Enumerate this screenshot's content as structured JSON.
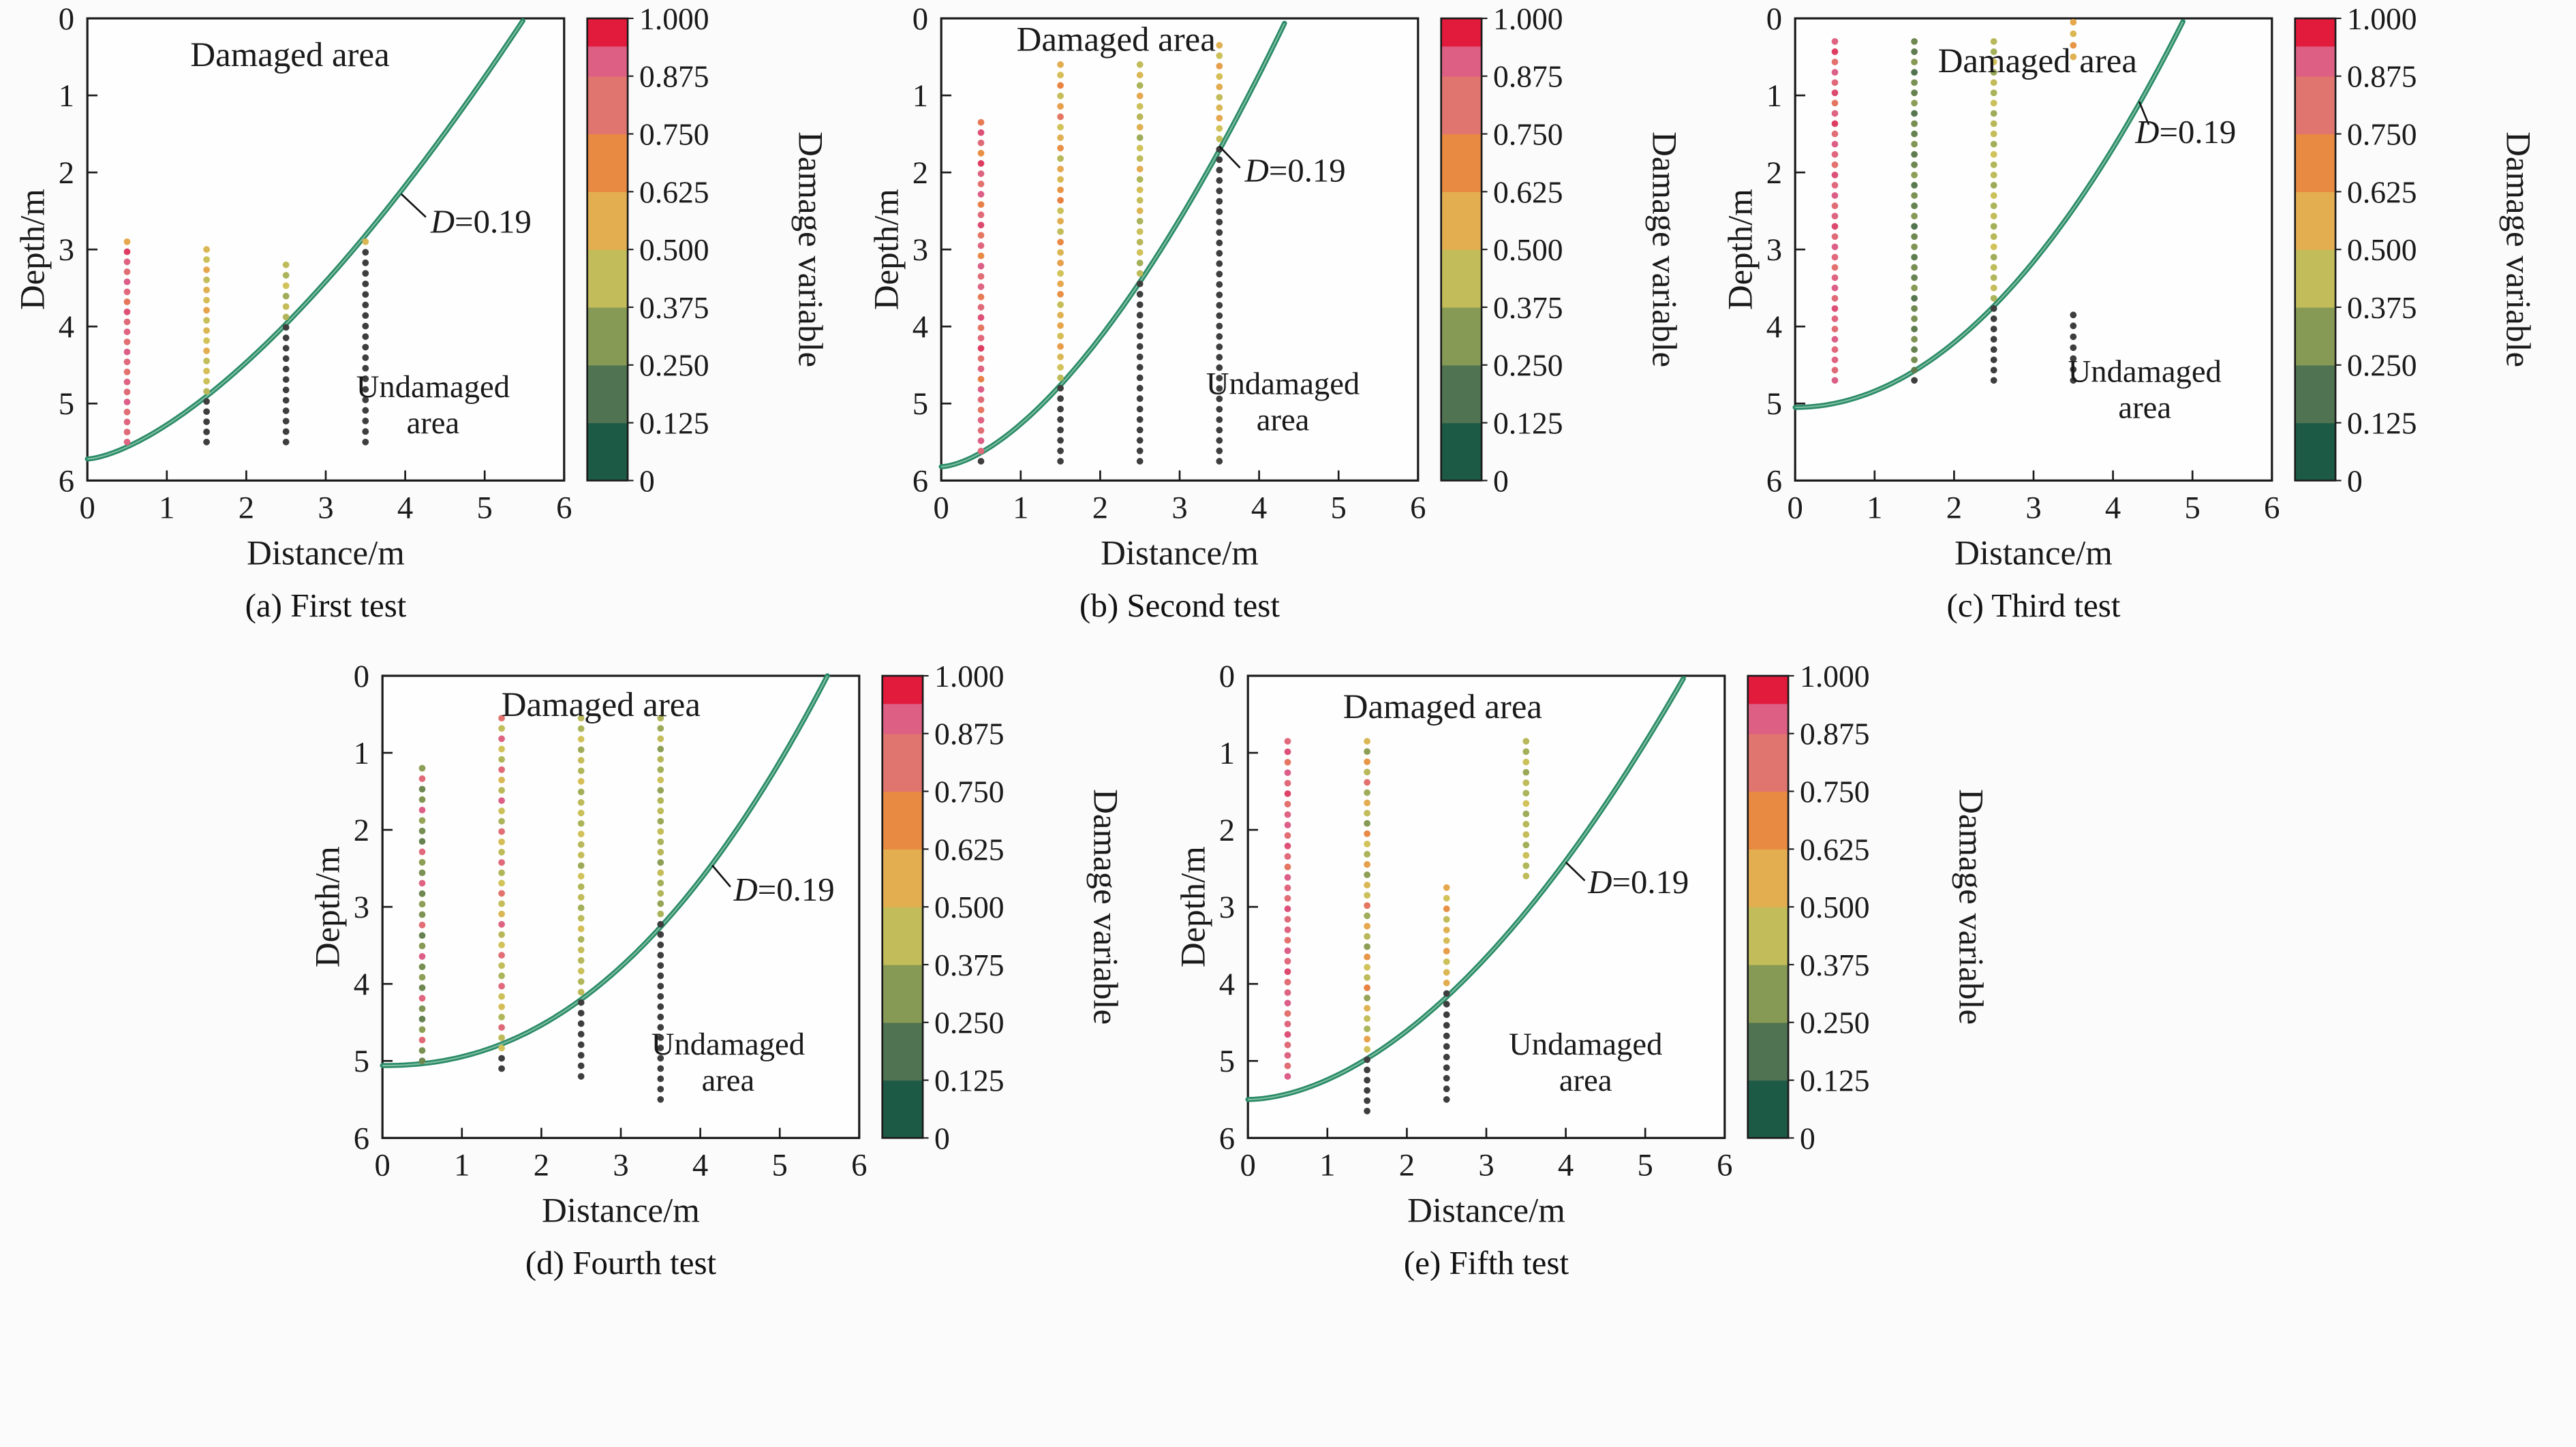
{
  "figure": {
    "background": "#fbfbfb",
    "plot_background": "#fefefe"
  },
  "axis": {
    "xlabel": "Distance/m",
    "ylabel": "Depth/m",
    "xticks": [
      "0",
      "1",
      "2",
      "3",
      "4",
      "5",
      "6"
    ],
    "yticks": [
      "0",
      "1",
      "2",
      "3",
      "4",
      "5",
      "6"
    ],
    "xlim": [
      0,
      6
    ],
    "ylim": [
      0,
      6
    ],
    "y_inverted": true,
    "grid": false
  },
  "colorbar": {
    "label": "Damage variable",
    "ticks": [
      {
        "label": "1.000",
        "v": 1.0
      },
      {
        "label": "0.875",
        "v": 0.875
      },
      {
        "label": "0.750",
        "v": 0.75
      },
      {
        "label": "0.625",
        "v": 0.625
      },
      {
        "label": "0.500",
        "v": 0.5
      },
      {
        "label": "0.375",
        "v": 0.375
      },
      {
        "label": "0.250",
        "v": 0.25
      },
      {
        "label": "0.125",
        "v": 0.125
      },
      {
        "label": "0",
        "v": 0
      }
    ],
    "bands": [
      [
        0,
        0.125,
        "#1d5a46"
      ],
      [
        0.125,
        0.25,
        "#507351"
      ],
      [
        0.25,
        0.375,
        "#879a55"
      ],
      [
        0.375,
        0.5,
        "#c2bc5a"
      ],
      [
        0.5,
        0.625,
        "#e3ae50"
      ],
      [
        0.625,
        0.75,
        "#e88a42"
      ],
      [
        0.75,
        0.875,
        "#e0756f"
      ],
      [
        0.875,
        0.94,
        "#dd5f84"
      ],
      [
        0.94,
        1,
        "#e21a3b"
      ]
    ],
    "stops": [
      [
        0,
        "#1c5845"
      ],
      [
        0.125,
        "#476b4e"
      ],
      [
        0.25,
        "#7b9153"
      ],
      [
        0.375,
        "#a9b35a"
      ],
      [
        0.5,
        "#d2c25a"
      ],
      [
        0.625,
        "#e6a74d"
      ],
      [
        0.75,
        "#e88142"
      ],
      [
        0.82,
        "#e3726f"
      ],
      [
        0.9,
        "#dc5f87"
      ],
      [
        1,
        "#e01a3a"
      ]
    ]
  },
  "style": {
    "curve_color": "#2a8a68",
    "curve_highlight": "#7fbfa0",
    "teal_text_color": "#3a8a72",
    "undamaged_dot_color": "#3e3e3e",
    "axis_color": "#1a1a1a"
  },
  "chart_data": [
    {
      "type": "scatter",
      "caption": "(a) First test",
      "curve": {
        "depth0": 5.72,
        "x_end": 5.5,
        "exp": 1.5,
        "contour_value": 0.19
      },
      "d_label": {
        "var": "D",
        "rest": "=0.19",
        "x": 4.32,
        "depth": 2.78,
        "leader": [
          3.95,
          2.28,
          4.26,
          2.58
        ]
      },
      "damaged_label": {
        "text": "Damaged area",
        "x": 2.55,
        "depth": 0.62,
        "color": "#ed5c88"
      },
      "undamaged_label": {
        "line1": "Undamaged",
        "line2": "area",
        "x": 4.35,
        "depth": 4.92
      },
      "columns": [
        {
          "x": 0.5,
          "top": 2.9,
          "bottom": 5.5,
          "values": [
            0.62,
            0.95,
            0.88,
            0.84,
            0.9,
            0.86,
            0.79,
            0.92,
            0.85,
            0.88,
            0.83,
            0.9,
            0.86,
            0.82,
            0.88,
            0.85,
            0.9,
            0.84,
            0.87,
            0.85,
            0.88
          ]
        },
        {
          "x": 1.5,
          "top": 3.0,
          "bottom": 5.5,
          "values": [
            0.55,
            0.48,
            0.62,
            0.45,
            0.58,
            0.52,
            0.64,
            0.47,
            0.55,
            0.5,
            0.6,
            0.45,
            0.52,
            0.48,
            0.42,
            -1,
            -1,
            -1,
            -1,
            -1
          ]
        },
        {
          "x": 2.5,
          "top": 3.2,
          "bottom": 5.5,
          "values": [
            0.44,
            0.38,
            0.5,
            0.35,
            0.46,
            0.4,
            -1,
            -1,
            -1,
            -1,
            -1,
            -1,
            -1,
            -1,
            -1,
            -1,
            -1,
            -1
          ]
        },
        {
          "x": 3.5,
          "top": 2.9,
          "bottom": 5.5,
          "values": [
            0.55,
            -1,
            -1,
            -1,
            -1,
            -1,
            -1,
            -1,
            -1,
            -1,
            -1,
            -1,
            -1,
            -1,
            -1,
            -1,
            -1,
            -1,
            -1,
            -1
          ]
        }
      ]
    },
    {
      "type": "scatter",
      "caption": "(b) Second test",
      "curve": {
        "depth0": 5.82,
        "x_end": 4.35,
        "exp": 1.6,
        "contour_value": 0.19
      },
      "d_label": {
        "var": "D",
        "rest": "=0.19",
        "x": 3.82,
        "depth": 2.12,
        "leader": [
          3.5,
          1.66,
          3.76,
          1.94
        ]
      },
      "damaged_label": {
        "text": "Damaged area",
        "x": 2.2,
        "depth": 0.42,
        "color": "#e2593f"
      },
      "undamaged_label": {
        "line1": "Undamaged",
        "line2": "area",
        "x": 4.3,
        "depth": 4.88
      },
      "columns": [
        {
          "x": 0.5,
          "top": 1.35,
          "bottom": 5.75,
          "values": [
            0.78,
            0.92,
            0.85,
            0.7,
            0.95,
            0.88,
            0.82,
            0.9,
            0.76,
            0.85,
            0.93,
            0.8,
            0.87,
            0.72,
            0.9,
            0.84,
            0.88,
            0.78,
            0.85,
            0.92,
            0.8,
            0.86,
            0.95,
            0.82,
            0.88,
            0.76,
            0.9,
            0.85,
            0.8,
            0.88,
            0.84,
            0.9,
            0.86,
            -1
          ]
        },
        {
          "x": 1.5,
          "top": 0.6,
          "bottom": 5.75,
          "values": [
            0.6,
            0.52,
            0.74,
            0.46,
            0.65,
            0.8,
            0.5,
            0.58,
            0.7,
            0.42,
            0.62,
            0.55,
            0.68,
            0.75,
            0.48,
            0.6,
            0.45,
            0.72,
            0.56,
            0.65,
            0.5,
            0.62,
            0.7,
            0.46,
            0.58,
            0.63,
            0.52,
            0.66,
            0.55,
            0.5,
            0.44,
            -1,
            -1,
            -1,
            -1,
            -1,
            -1,
            -1,
            -1
          ]
        },
        {
          "x": 2.5,
          "top": 0.6,
          "bottom": 5.75,
          "values": [
            0.45,
            0.55,
            0.38,
            0.62,
            0.48,
            0.42,
            0.58,
            0.35,
            0.5,
            0.44,
            0.6,
            0.4,
            0.52,
            0.46,
            0.56,
            0.38,
            0.48,
            0.42,
            0.5,
            0.36,
            0.44,
            -1,
            -1,
            -1,
            -1,
            -1,
            -1,
            -1,
            -1,
            -1,
            -1,
            -1,
            -1,
            -1,
            -1,
            -1,
            -1,
            -1,
            -1
          ]
        },
        {
          "x": 3.5,
          "top": 0.35,
          "bottom": 5.75,
          "values": [
            0.58,
            0.48,
            0.65,
            0.52,
            0.6,
            0.45,
            0.55,
            0.62,
            0.5,
            0.46,
            -1,
            -1,
            -1,
            -1,
            -1,
            -1,
            -1,
            -1,
            -1,
            -1,
            -1,
            -1,
            -1,
            -1,
            -1,
            -1,
            -1,
            -1,
            -1,
            -1,
            -1,
            -1,
            -1,
            -1,
            -1,
            -1,
            -1,
            -1,
            -1,
            -1,
            -1
          ]
        }
      ]
    },
    {
      "type": "scatter",
      "caption": "(c) Third test",
      "curve": {
        "depth0": 5.05,
        "x_end": 4.9,
        "exp": 2.0,
        "contour_value": 0.19
      },
      "d_label": {
        "var": "D",
        "rest": "=0.19",
        "x": 4.28,
        "depth": 1.62,
        "leader": [
          4.33,
          1.08,
          4.45,
          1.38
        ]
      },
      "damaged_label": {
        "text": "Damaged area",
        "x": 3.05,
        "depth": 0.7,
        "color": "#e2593f"
      },
      "undamaged_label": {
        "line1": "Undamaged",
        "line2": "area",
        "x": 4.4,
        "depth": 4.72
      },
      "columns": [
        {
          "x": 0.5,
          "top": 0.3,
          "bottom": 4.7,
          "values": [
            0.88,
            0.95,
            0.82,
            0.9,
            0.86,
            0.93,
            0.8,
            0.88,
            0.95,
            0.84,
            0.9,
            0.87,
            0.82,
            0.92,
            0.86,
            0.9,
            0.84,
            0.88,
            0.93,
            0.85,
            0.9,
            0.86,
            0.82,
            0.88,
            0.9,
            0.85,
            0.92,
            0.87,
            0.84,
            0.9,
            0.86,
            0.88,
            0.85,
            0.9
          ]
        },
        {
          "x": 1.5,
          "top": 0.3,
          "bottom": 4.7,
          "values": [
            0.22,
            0.18,
            0.28,
            0.15,
            0.25,
            0.2,
            0.3,
            0.16,
            0.24,
            0.2,
            0.27,
            0.18,
            0.22,
            0.3,
            0.17,
            0.25,
            0.2,
            0.28,
            0.15,
            0.22,
            0.26,
            0.18,
            0.24,
            0.2,
            0.28,
            0.16,
            0.22,
            0.25,
            0.18,
            0.26,
            0.2,
            0.24,
            0.18,
            -1
          ]
        },
        {
          "x": 2.5,
          "top": 0.3,
          "bottom": 4.7,
          "values": [
            0.42,
            0.36,
            0.5,
            0.33,
            0.45,
            0.38,
            0.48,
            0.35,
            0.42,
            0.46,
            0.36,
            0.5,
            0.4,
            0.44,
            0.34,
            0.48,
            0.38,
            0.45,
            0.36,
            0.42,
            0.5,
            0.35,
            0.44,
            0.4,
            0.46,
            0.38,
            -1,
            -1,
            -1,
            -1,
            -1,
            -1,
            -1,
            -1
          ]
        },
        {
          "x": 3.5,
          "top": 0.05,
          "bottom": 0.5,
          "values": [
            0.62,
            0.55,
            0.68,
            0.58
          ]
        },
        {
          "x": 3.5,
          "top": 3.85,
          "bottom": 4.7,
          "values": [
            -1,
            -1,
            -1,
            -1,
            -1,
            -1,
            -1
          ]
        }
      ]
    },
    {
      "type": "scatter",
      "caption": "(d) Fourth test",
      "curve": {
        "depth0": 5.06,
        "x_end": 5.6,
        "exp": 2.2,
        "contour_value": 0.19
      },
      "d_label": {
        "var": "D",
        "rest": "=0.19",
        "x": 4.42,
        "depth": 2.92,
        "leader": [
          4.15,
          2.46,
          4.38,
          2.74
        ]
      },
      "damaged_label": {
        "text": "Damaged area",
        "x": 2.75,
        "depth": 0.52,
        "color": "#e94a70"
      },
      "undamaged_label": {
        "line1": "Undamaged",
        "line2": "area",
        "x": 4.35,
        "depth": 4.92
      },
      "columns": [
        {
          "x": 0.5,
          "top": 1.2,
          "bottom": 5.0,
          "values": [
            0.3,
            0.85,
            0.22,
            0.27,
            0.9,
            0.32,
            0.24,
            0.2,
            0.86,
            0.3,
            0.25,
            0.88,
            0.22,
            0.3,
            0.26,
            0.84,
            0.2,
            0.28,
            0.9,
            0.24,
            0.3,
            0.22,
            0.87,
            0.26,
            0.2,
            0.3,
            0.85,
            0.25,
            0.22
          ]
        },
        {
          "x": 1.5,
          "top": 0.55,
          "bottom": 5.1,
          "values": [
            0.82,
            0.45,
            0.88,
            0.5,
            0.4,
            0.85,
            0.55,
            0.42,
            0.9,
            0.48,
            0.38,
            0.84,
            0.52,
            0.44,
            0.86,
            0.4,
            0.5,
            0.82,
            0.46,
            0.55,
            0.88,
            0.42,
            0.5,
            0.84,
            0.45,
            0.38,
            0.86,
            0.48,
            0.52,
            0.4,
            0.85,
            0.44,
            0.5,
            -1,
            -1
          ]
        },
        {
          "x": 2.5,
          "top": 0.55,
          "bottom": 5.2,
          "values": [
            0.44,
            0.38,
            0.5,
            0.35,
            0.46,
            0.4,
            0.52,
            0.36,
            0.44,
            0.48,
            0.38,
            0.5,
            0.42,
            0.46,
            0.34,
            0.5,
            0.4,
            0.45,
            0.36,
            0.44,
            0.52,
            0.38,
            0.46,
            0.42,
            0.48,
            0.4,
            0.44,
            -1,
            -1,
            -1,
            -1,
            -1,
            -1,
            -1,
            -1
          ]
        },
        {
          "x": 3.5,
          "top": 0.55,
          "bottom": 5.5,
          "values": [
            0.4,
            0.34,
            0.46,
            0.3,
            0.42,
            0.36,
            0.48,
            0.32,
            0.4,
            0.44,
            0.34,
            0.46,
            0.38,
            0.42,
            0.3,
            0.46,
            0.36,
            0.4,
            0.32,
            0.38,
            -1,
            -1,
            -1,
            -1,
            -1,
            -1,
            -1,
            -1,
            -1,
            -1,
            -1,
            -1,
            -1,
            -1,
            -1,
            -1,
            -1,
            -1
          ]
        }
      ]
    },
    {
      "type": "scatter",
      "caption": "(e) Fifth test",
      "curve": {
        "depth0": 5.5,
        "x_end": 5.5,
        "exp": 1.8,
        "contour_value": 0.19
      },
      "d_label": {
        "var": "D",
        "rest": "=0.19",
        "x": 4.28,
        "depth": 2.82,
        "leader": [
          4.0,
          2.42,
          4.24,
          2.66
        ]
      },
      "damaged_label": {
        "text": "Damaged area",
        "x": 2.45,
        "depth": 0.55,
        "color": "#e94a70"
      },
      "undamaged_label": {
        "line1": "Undamaged",
        "line2": "area",
        "x": 4.25,
        "depth": 4.92
      },
      "columns": [
        {
          "x": 0.5,
          "top": 0.85,
          "bottom": 5.2,
          "values": [
            0.86,
            0.92,
            0.8,
            0.9,
            0.85,
            0.94,
            0.82,
            0.88,
            0.9,
            0.84,
            0.92,
            0.86,
            0.8,
            0.9,
            0.87,
            0.84,
            0.92,
            0.85,
            0.88,
            0.82,
            0.9,
            0.86,
            0.93,
            0.84,
            0.88,
            0.9,
            0.82,
            0.87,
            0.92,
            0.85,
            0.88,
            0.84,
            0.9
          ]
        },
        {
          "x": 1.5,
          "top": 0.85,
          "bottom": 5.65,
          "values": [
            0.55,
            0.3,
            0.68,
            0.42,
            0.82,
            0.35,
            0.6,
            0.45,
            0.28,
            0.72,
            0.5,
            0.38,
            0.65,
            0.3,
            0.55,
            0.48,
            0.8,
            0.35,
            0.62,
            0.42,
            0.3,
            0.68,
            0.5,
            0.44,
            0.75,
            0.32,
            0.58,
            0.46,
            0.38,
            0.64,
            0.5,
            -1,
            -1,
            -1,
            -1,
            -1,
            -1
          ]
        },
        {
          "x": 2.5,
          "top": 2.75,
          "bottom": 5.5,
          "values": [
            0.62,
            0.5,
            0.7,
            0.45,
            0.58,
            0.52,
            0.66,
            0.48,
            0.55,
            0.6,
            -1,
            -1,
            -1,
            -1,
            -1,
            -1,
            -1,
            -1,
            -1,
            -1,
            -1
          ]
        },
        {
          "x": 3.5,
          "top": 0.85,
          "bottom": 2.6,
          "values": [
            0.42,
            0.36,
            0.48,
            0.34,
            0.44,
            0.38,
            0.5,
            0.35,
            0.42,
            0.46,
            0.36,
            0.48,
            0.4,
            0.44
          ]
        }
      ]
    }
  ]
}
